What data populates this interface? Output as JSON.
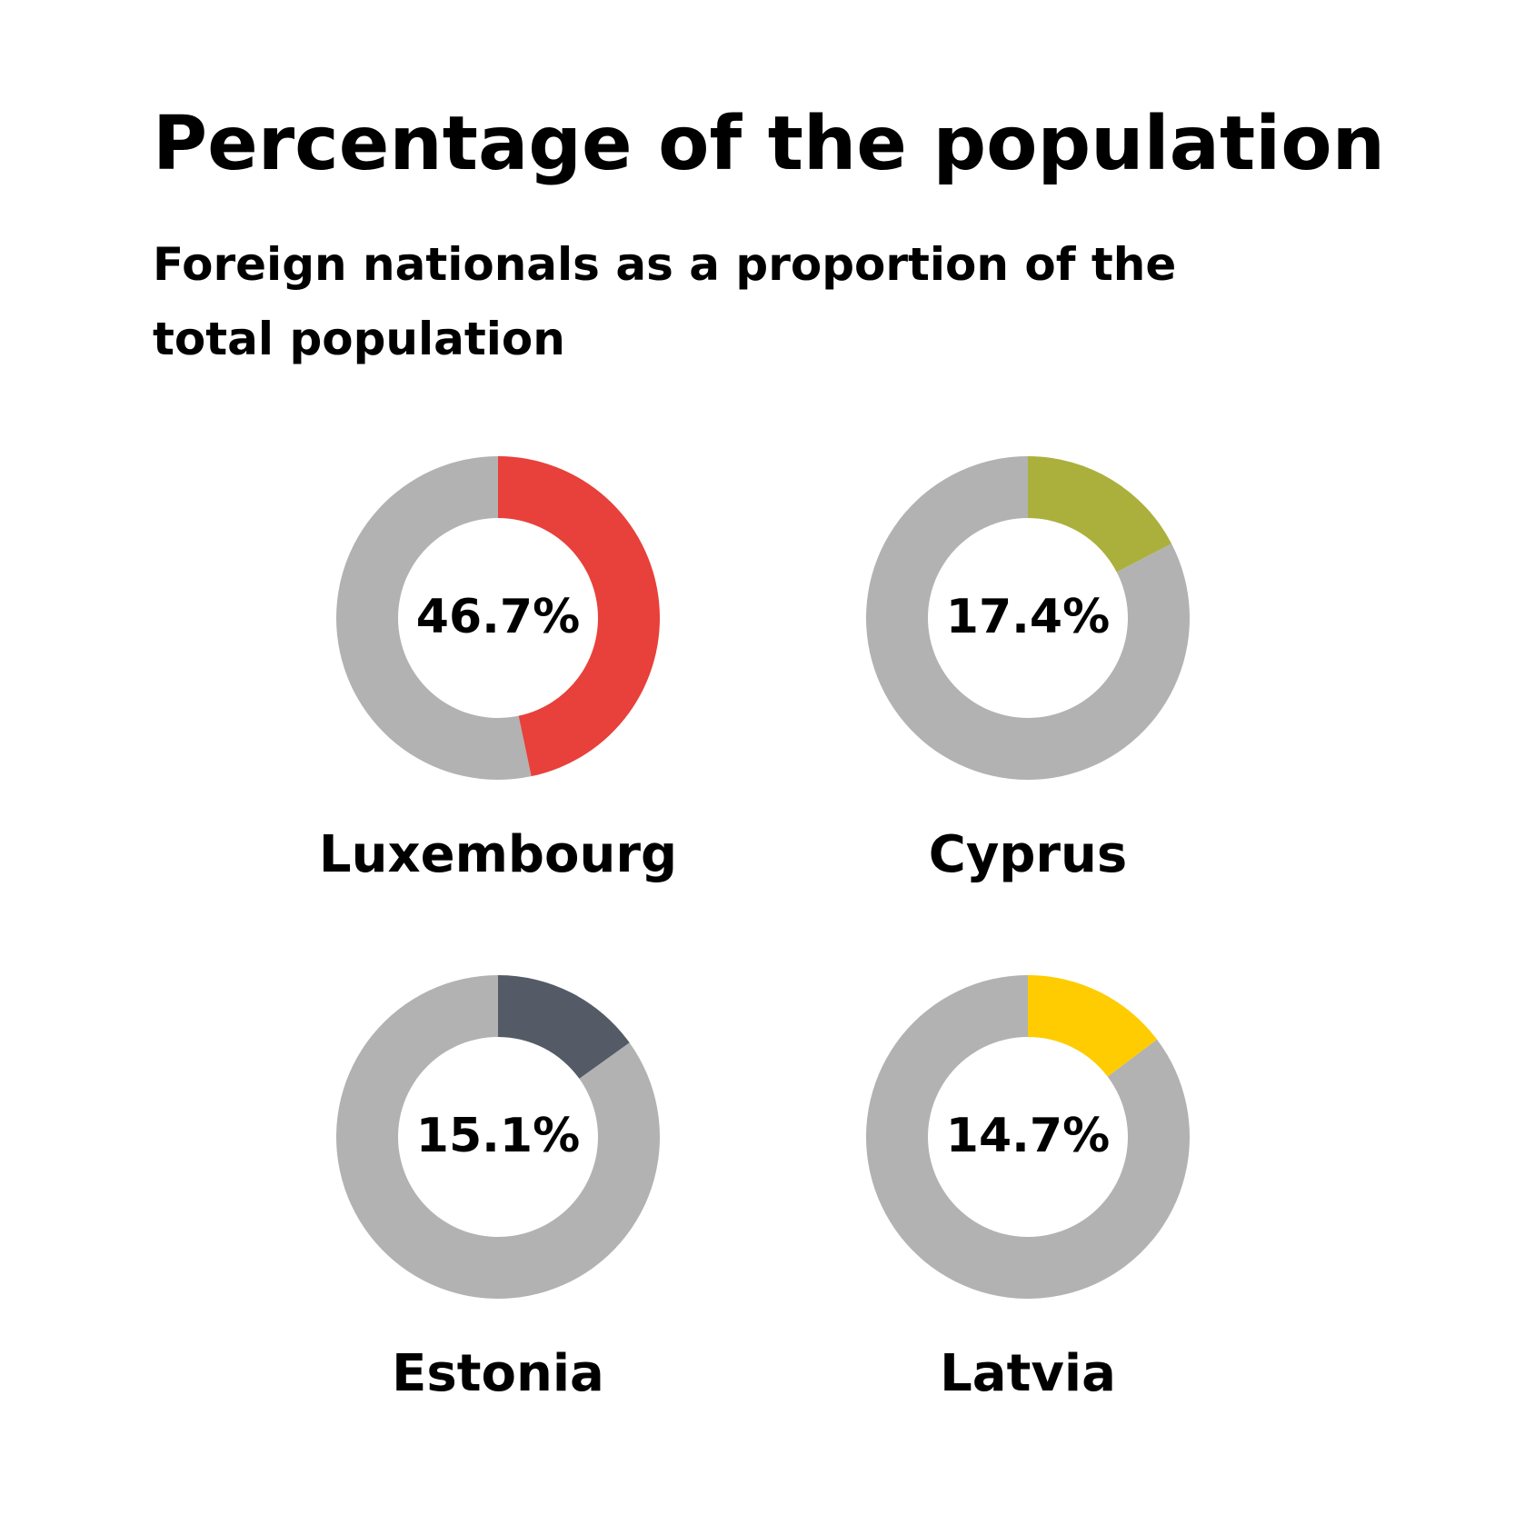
{
  "title": "Percentage of the population",
  "subtitle": "Foreign nationals as a proportion of the total population",
  "colors": {
    "remainder": "#b2b2b2",
    "luxembourg": "#e8403a",
    "cyprus": "#abb03d",
    "estonia": "#545b66",
    "latvia": "#fecc00"
  },
  "chart_data": [
    {
      "type": "pie",
      "style": "donut",
      "category": "Luxembourg",
      "value": 46.7,
      "value_label": "46.7%",
      "color": "#e8403a",
      "remainder": 53.3,
      "remainder_color": "#b2b2b2"
    },
    {
      "type": "pie",
      "style": "donut",
      "category": "Cyprus",
      "value": 17.4,
      "value_label": "17.4%",
      "color": "#abb03d",
      "remainder": 82.6,
      "remainder_color": "#b2b2b2"
    },
    {
      "type": "pie",
      "style": "donut",
      "category": "Estonia",
      "value": 15.1,
      "value_label": "15.1%",
      "color": "#545b66",
      "remainder": 84.9,
      "remainder_color": "#b2b2b2"
    },
    {
      "type": "pie",
      "style": "donut",
      "category": "Latvia",
      "value": 14.7,
      "value_label": "14.7%",
      "color": "#fecc00",
      "remainder": 85.3,
      "remainder_color": "#b2b2b2"
    }
  ]
}
